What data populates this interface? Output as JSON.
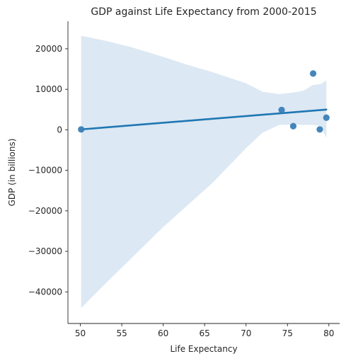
{
  "chart_data": {
    "type": "scatter",
    "title": "GDP against Life Expectancy from 2000-2015",
    "xlabel": "Life Expectancy",
    "ylabel": "GDP (in billions)",
    "xlim": [
      48.5,
      81.3
    ],
    "ylim": [
      -47800,
      26800
    ],
    "xticks": [
      50,
      55,
      60,
      65,
      70,
      75,
      80
    ],
    "yticks": [
      -40000,
      -30000,
      -20000,
      -10000,
      0,
      10000,
      20000
    ],
    "ytick_labels": [
      "−40000",
      "−30000",
      "−20000",
      "−10000",
      "0",
      "10000",
      "20000"
    ],
    "points": [
      {
        "x": 50.1,
        "y": 100
      },
      {
        "x": 74.3,
        "y": 4900
      },
      {
        "x": 75.7,
        "y": 900
      },
      {
        "x": 78.1,
        "y": 13900
      },
      {
        "x": 78.9,
        "y": 100
      },
      {
        "x": 79.7,
        "y": 3000
      }
    ],
    "regression": {
      "x": [
        50.1,
        79.7
      ],
      "y": [
        100,
        5000
      ]
    },
    "confidence_band": {
      "x": [
        50.1,
        53,
        56,
        60,
        63,
        66,
        70,
        72,
        74,
        76,
        77,
        78,
        79,
        79.7
      ],
      "upper": [
        23200,
        22000,
        20500,
        18000,
        16000,
        14200,
        11500,
        9400,
        8800,
        9300,
        9700,
        11000,
        11300,
        12200
      ],
      "lower": [
        -44000,
        -38000,
        -32000,
        -24000,
        -18500,
        -13000,
        -4500,
        -700,
        1200,
        1300,
        1200,
        1200,
        1000,
        -2000
      ]
    },
    "colors": {
      "points": "#3a80b8",
      "line": "#1f77b4",
      "band": "#dce8f3",
      "axis": "#262626"
    },
    "grid": false,
    "legend": "none"
  }
}
